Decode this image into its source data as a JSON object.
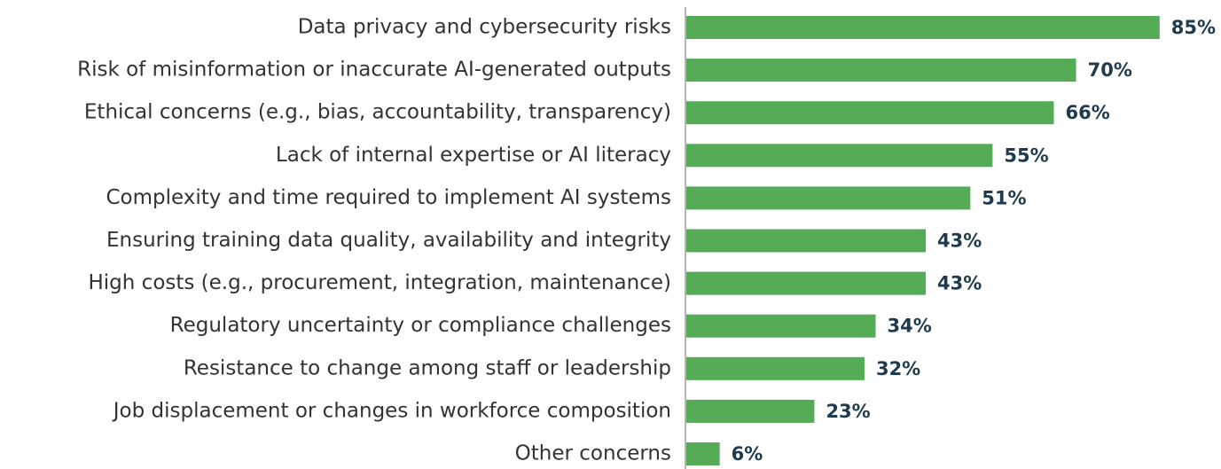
{
  "chart_data": {
    "type": "bar",
    "orientation": "horizontal",
    "categories": [
      "Data privacy and cybersecurity risks",
      "Risk of misinformation or inaccurate AI-generated outputs",
      "Ethical concerns (e.g., bias, accountability, transparency)",
      "Lack of internal expertise or AI literacy",
      "Complexity and time required to implement AI systems",
      "Ensuring training data quality, availability and integrity",
      "High costs (e.g., procurement, integration, maintenance)",
      "Regulatory uncertainty or compliance challenges",
      "Resistance to change among staff or leadership",
      "Job displacement or changes in workforce composition",
      "Other concerns"
    ],
    "values": [
      85,
      70,
      66,
      55,
      51,
      43,
      43,
      34,
      32,
      23,
      6
    ],
    "value_labels": [
      "85%",
      "70%",
      "66%",
      "55%",
      "51%",
      "43%",
      "43%",
      "34%",
      "32%",
      "23%",
      "6%"
    ],
    "color": "#56ab56"
  }
}
